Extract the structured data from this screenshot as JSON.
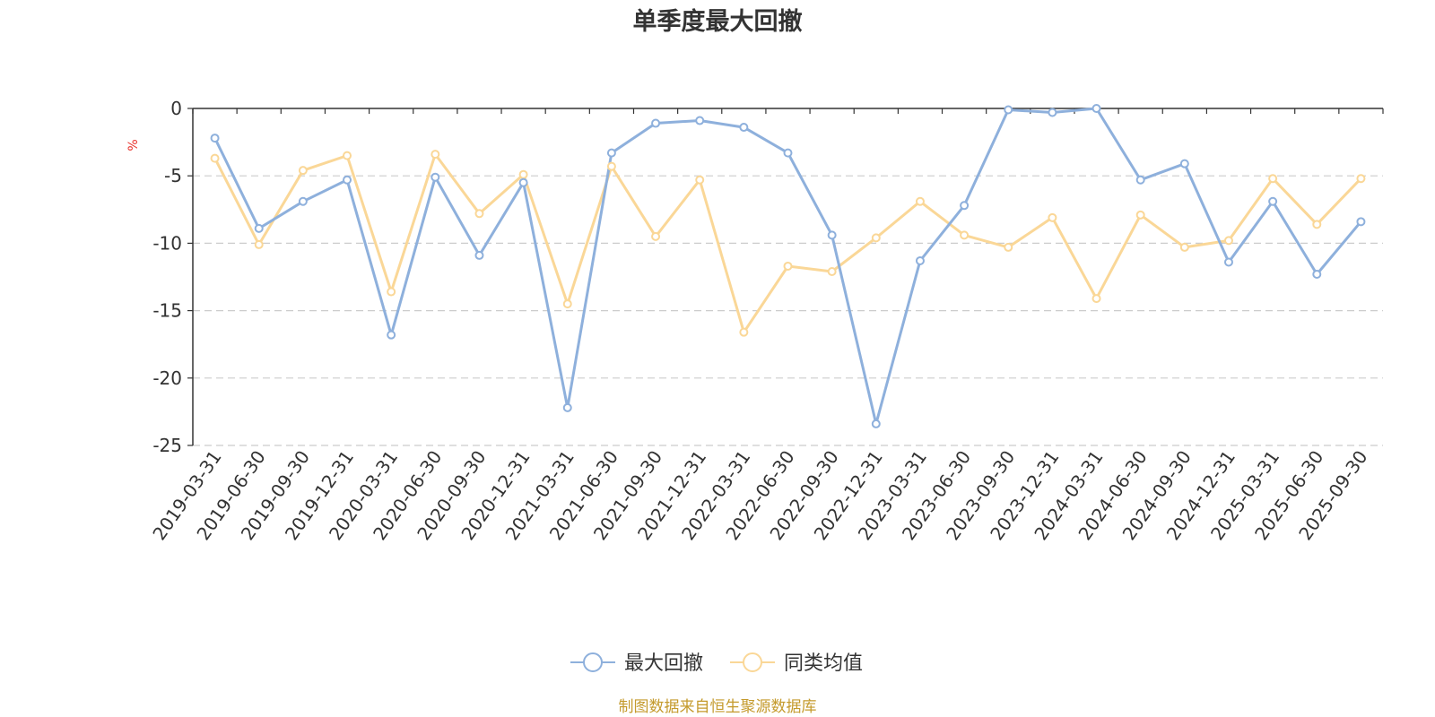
{
  "chart_data": {
    "type": "line",
    "title": "单季度最大回撤",
    "ylabel": "%",
    "ylim": [
      -25,
      0
    ],
    "yticks": [
      0,
      -5,
      -10,
      -15,
      -20,
      -25
    ],
    "y_tick_labels": [
      "0",
      "-5",
      "-10",
      "-15",
      "-20",
      "-25"
    ],
    "grid": "horizontal-dashed",
    "legend_position": "bottom-center",
    "categories": [
      "2019-03-31",
      "2019-06-30",
      "2019-09-30",
      "2019-12-31",
      "2020-03-31",
      "2020-06-30",
      "2020-09-30",
      "2020-12-31",
      "2021-03-31",
      "2021-06-30",
      "2021-09-30",
      "2021-12-31",
      "2022-03-31",
      "2022-06-30",
      "2022-09-30",
      "2022-12-31",
      "2023-03-31",
      "2023-06-30",
      "2023-09-30",
      "2023-12-31",
      "2024-03-31",
      "2024-06-30",
      "2024-09-30",
      "2024-12-31",
      "2025-03-31",
      "2025-06-30",
      "2025-09-30"
    ],
    "series": [
      {
        "name": "最大回撤",
        "color": "#8eb0dc",
        "values": [
          -2.2,
          -8.9,
          -6.9,
          -5.3,
          -16.8,
          -5.1,
          -10.9,
          -5.5,
          -22.2,
          -3.3,
          -1.1,
          -0.9,
          -1.4,
          -3.3,
          -9.4,
          -23.4,
          -11.3,
          -7.2,
          -0.1,
          -0.3,
          0.0,
          -5.3,
          -4.1,
          -11.4,
          -6.9,
          -12.3,
          -8.4
        ]
      },
      {
        "name": "同类均值",
        "color": "#fad797",
        "values": [
          -3.7,
          -10.1,
          -4.6,
          -3.5,
          -13.6,
          -3.4,
          -7.8,
          -4.9,
          -14.5,
          -4.3,
          -9.5,
          -5.3,
          -16.6,
          -11.7,
          -12.1,
          -9.6,
          -6.9,
          -9.4,
          -10.3,
          -8.1,
          -14.1,
          -7.9,
          -10.3,
          -9.8,
          -5.2,
          -8.6,
          -5.2
        ]
      }
    ]
  },
  "footer": {
    "source": "制图数据来自恒生聚源数据库"
  }
}
